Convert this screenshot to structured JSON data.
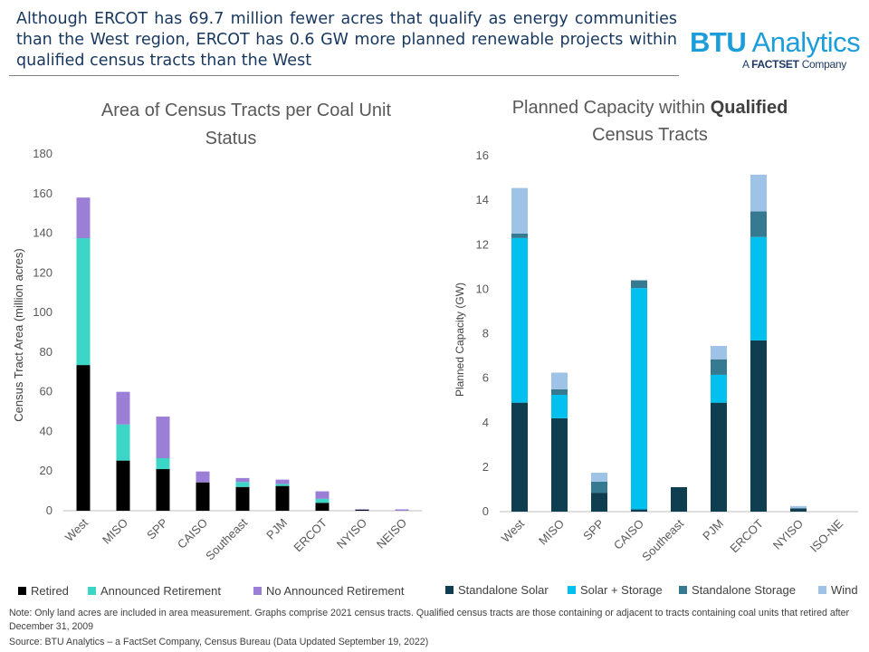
{
  "headline": "Although ERCOT has 69.7 million fewer acres that qualify as energy communities than the West region, ERCOT has 0.6 GW more planned renewable projects within qualified census tracts than the West",
  "logo": {
    "brand_bold": "BTU",
    "brand_rest": " Analytics",
    "sub_prefix": "A ",
    "sub_bold": "FACTSET",
    "sub_rest": " Company"
  },
  "note": "Note:  Only land acres are included in area measurement. Graphs comprise 2021 census tracts. Qualified census tracts are those containing or adjacent to tracts containing coal units that retired after December  31, 2009",
  "source": "Source:  BTU Analytics – a FactSet Company, Census Bureau (Data Updated September  19, 2022)",
  "chart_data": [
    {
      "type": "bar",
      "stacked": true,
      "title": "Area of Census Tracts per Coal Unit Status",
      "xlabel": "",
      "ylabel": "Census Tract Area (million acres)",
      "ylim": [
        0,
        180
      ],
      "yticks": [
        0,
        20,
        40,
        60,
        80,
        100,
        120,
        140,
        160,
        180
      ],
      "grid": false,
      "legend_position": "bottom",
      "categories": [
        "West",
        "MISO",
        "SPP",
        "CAISO",
        "Southeast",
        "PJM",
        "ERCOT",
        "NYISO",
        "NEISO"
      ],
      "series": [
        {
          "name": "Retired",
          "color": "#000000",
          "values": [
            73.5,
            25.3,
            21,
            14.3,
            12,
            12.5,
            4,
            0.5,
            0
          ]
        },
        {
          "name": "Announced Retirement",
          "color": "#3cd6c6",
          "values": [
            64,
            18.2,
            5.5,
            0,
            2.5,
            1,
            2,
            0,
            0
          ]
        },
        {
          "name": "No Announced Retirement",
          "color": "#9b7fd6",
          "values": [
            20.5,
            16.5,
            21,
            5.5,
            2,
            2.2,
            3.8,
            0.3,
            0.7
          ]
        }
      ]
    },
    {
      "type": "bar",
      "stacked": true,
      "title_plain": "Planned Capacity within ",
      "title_bold": "Qualified",
      "title_line2": "Census Tracts",
      "xlabel": "",
      "ylabel": "Planned Capacity (GW)",
      "ylim": [
        0,
        16
      ],
      "yticks": [
        0,
        2,
        4,
        6,
        8,
        10,
        12,
        14,
        16
      ],
      "grid": false,
      "legend_position": "bottom",
      "categories": [
        "West",
        "MISO",
        "SPP",
        "CAISO",
        "Southeast",
        "PJM",
        "ERCOT",
        "NYISO",
        "ISO-NE"
      ],
      "series": [
        {
          "name": "Standalone Solar",
          "color": "#0e3e4f",
          "values": [
            4.9,
            4.2,
            0.85,
            0.1,
            1.1,
            4.9,
            7.7,
            0.15,
            0
          ]
        },
        {
          "name": "Solar + Storage",
          "color": "#00c0f0",
          "values": [
            7.4,
            1.05,
            0,
            9.95,
            0,
            1.25,
            4.65,
            0,
            0
          ]
        },
        {
          "name": "Standalone Storage",
          "color": "#357a91",
          "values": [
            0.2,
            0.25,
            0.5,
            0.35,
            0,
            0.7,
            1.15,
            0,
            0
          ]
        },
        {
          "name": "Wind",
          "color": "#9ec3e6",
          "values": [
            2.05,
            0.75,
            0.4,
            0,
            0,
            0.6,
            1.65,
            0.1,
            0
          ]
        }
      ]
    }
  ]
}
